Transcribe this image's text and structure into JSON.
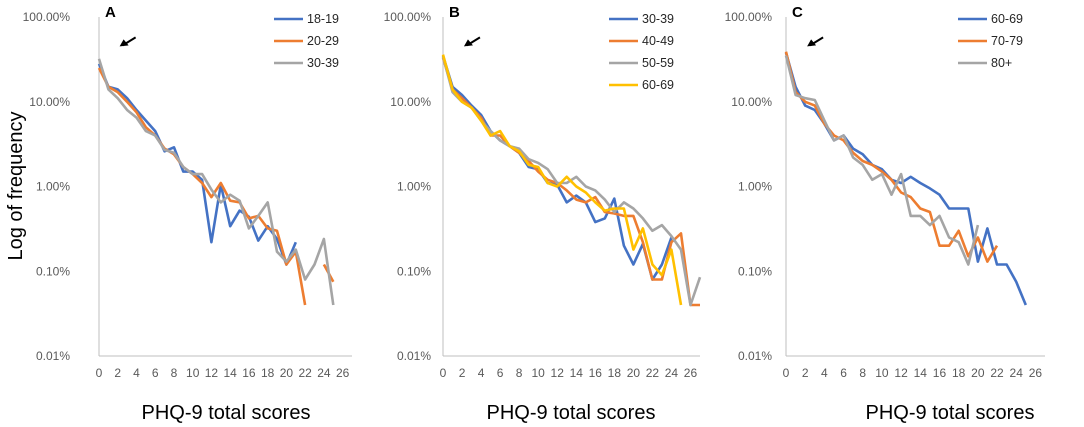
{
  "figure": {
    "ylabel": "Log of frequency"
  },
  "chart_data": [
    {
      "type": "line",
      "panel": "A",
      "xlabel": "PHQ-9 total scores",
      "ylabel": "Log of frequency",
      "yscale": "log",
      "ylim": [
        0.0001,
        1
      ],
      "yticks": [
        "0.01%",
        "0.10%",
        "1.00%",
        "10.00%",
        "100.00%"
      ],
      "xlim": [
        0,
        27
      ],
      "xticks": [
        "0",
        "2",
        "4",
        "6",
        "8",
        "10",
        "12",
        "14",
        "16",
        "18",
        "20",
        "22",
        "24",
        "26"
      ],
      "arrow_at": [
        2.2,
        0.45
      ],
      "series": [
        {
          "name": "18-19",
          "color": "#4472C4",
          "x": [
            0,
            1,
            2,
            3,
            4,
            5,
            6,
            7,
            8,
            9,
            10,
            11,
            12,
            13,
            14,
            15,
            16,
            17,
            18,
            19,
            20,
            21,
            22
          ],
          "y": [
            0.28,
            0.15,
            0.14,
            0.11,
            0.08,
            0.06,
            0.045,
            0.026,
            0.029,
            0.015,
            0.015,
            0.012,
            0.0022,
            0.0105,
            0.0034,
            0.0052,
            0.0044,
            0.0023,
            0.0034,
            0.0024,
            0.0012,
            0.0022,
            null
          ]
        },
        {
          "name": "20-29",
          "color": "#ED7D31",
          "x": [
            0,
            1,
            2,
            3,
            4,
            5,
            6,
            7,
            8,
            9,
            10,
            11,
            12,
            13,
            14,
            15,
            16,
            17,
            18,
            19,
            20,
            21,
            22,
            23,
            24,
            25
          ],
          "y": [
            0.25,
            0.15,
            0.13,
            0.1,
            0.075,
            0.05,
            0.04,
            0.028,
            0.024,
            0.017,
            0.014,
            0.011,
            0.0075,
            0.011,
            0.0068,
            0.0065,
            0.0042,
            0.0045,
            0.0032,
            0.003,
            0.0012,
            0.0017,
            0.0004,
            null,
            0.0012,
            0.00075
          ]
        },
        {
          "name": "30-39",
          "color": "#A5A5A5",
          "x": [
            0,
            1,
            2,
            3,
            4,
            5,
            6,
            7,
            8,
            9,
            10,
            11,
            12,
            13,
            14,
            15,
            16,
            17,
            18,
            19,
            20,
            21,
            22,
            23,
            24,
            25
          ],
          "y": [
            0.32,
            0.14,
            0.11,
            0.08,
            0.065,
            0.045,
            0.04,
            0.027,
            0.025,
            0.017,
            0.014,
            0.014,
            0.0092,
            0.0065,
            0.008,
            0.0068,
            0.0032,
            0.0045,
            0.0065,
            0.0017,
            0.0013,
            0.0018,
            0.0008,
            0.0012,
            0.0024,
            0.0004
          ]
        }
      ]
    },
    {
      "type": "line",
      "panel": "B",
      "xlabel": "PHQ-9 total scores",
      "ylabel": "",
      "yscale": "log",
      "ylim": [
        0.0001,
        1
      ],
      "yticks": [
        "0.01%",
        "0.10%",
        "1.00%",
        "10.00%",
        "100.00%"
      ],
      "xlim": [
        0,
        27
      ],
      "xticks": [
        "0",
        "2",
        "4",
        "6",
        "8",
        "10",
        "12",
        "14",
        "16",
        "18",
        "20",
        "22",
        "24",
        "26"
      ],
      "arrow_at": [
        2.2,
        0.45
      ],
      "series": [
        {
          "name": "30-39",
          "color": "#4472C4",
          "x": [
            0,
            1,
            2,
            3,
            4,
            5,
            6,
            7,
            8,
            9,
            10,
            11,
            12,
            13,
            14,
            15,
            16,
            17,
            18,
            19,
            20,
            21,
            22,
            23,
            24
          ],
          "y": [
            0.35,
            0.15,
            0.12,
            0.09,
            0.07,
            0.045,
            0.035,
            0.03,
            0.025,
            0.017,
            0.016,
            0.011,
            0.0105,
            0.0065,
            0.0078,
            0.0065,
            0.0038,
            0.0042,
            0.0072,
            0.002,
            0.0012,
            0.0021,
            0.0008,
            0.0012,
            0.0025
          ]
        },
        {
          "name": "40-49",
          "color": "#ED7D31",
          "x": [
            0,
            1,
            2,
            3,
            4,
            5,
            6,
            7,
            8,
            9,
            10,
            11,
            12,
            13,
            14,
            15,
            16,
            17,
            18,
            19,
            20,
            21,
            22,
            23,
            24,
            25,
            26,
            27
          ],
          "y": [
            0.33,
            0.14,
            0.11,
            0.085,
            0.065,
            0.04,
            0.04,
            0.03,
            0.025,
            0.02,
            0.015,
            0.012,
            0.011,
            0.009,
            0.007,
            0.0065,
            0.0075,
            0.005,
            0.0048,
            0.0045,
            0.0045,
            0.0022,
            0.0008,
            0.0008,
            0.0022,
            0.0028,
            0.0004,
            0.0004
          ]
        },
        {
          "name": "50-59",
          "color": "#A5A5A5",
          "x": [
            0,
            1,
            2,
            3,
            4,
            5,
            6,
            7,
            8,
            9,
            10,
            11,
            12,
            13,
            14,
            15,
            16,
            17,
            18,
            19,
            20,
            21,
            22,
            23,
            24,
            25,
            26,
            27
          ],
          "y": [
            0.34,
            0.13,
            0.1,
            0.085,
            0.06,
            0.045,
            0.035,
            0.03,
            0.028,
            0.021,
            0.019,
            0.016,
            0.011,
            0.011,
            0.013,
            0.01,
            0.009,
            0.007,
            0.005,
            0.0065,
            0.0055,
            0.0042,
            0.003,
            0.0035,
            0.0026,
            0.0018,
            0.0004,
            0.00085
          ]
        },
        {
          "name": "60-69",
          "color": "#FFC000",
          "x": [
            0,
            1,
            2,
            3,
            4,
            5,
            6,
            7,
            8,
            9,
            10,
            11,
            12,
            13,
            14,
            15,
            16,
            17,
            18,
            19,
            20,
            21,
            22,
            23,
            24,
            25
          ],
          "y": [
            0.36,
            0.14,
            0.1,
            0.085,
            0.06,
            0.04,
            0.045,
            0.03,
            0.026,
            0.018,
            0.017,
            0.011,
            0.01,
            0.013,
            0.01,
            0.0085,
            0.0065,
            0.0052,
            0.0055,
            0.0055,
            0.0018,
            0.0032,
            0.0012,
            0.0009,
            0.0018,
            0.0004
          ]
        }
      ]
    },
    {
      "type": "line",
      "panel": "C",
      "xlabel": "PHQ-9 total scores",
      "ylabel": "",
      "yscale": "log",
      "ylim": [
        0.0001,
        1
      ],
      "yticks": [
        "0.01%",
        "0.10%",
        "1.00%",
        "10.00%",
        "100.00%"
      ],
      "xlim": [
        0,
        27
      ],
      "xticks": [
        "0",
        "2",
        "4",
        "6",
        "8",
        "10",
        "12",
        "14",
        "16",
        "18",
        "20",
        "22",
        "24",
        "26"
      ],
      "arrow_at": [
        2.2,
        0.45
      ],
      "series": [
        {
          "name": "60-69",
          "color": "#4472C4",
          "x": [
            0,
            1,
            2,
            3,
            4,
            5,
            6,
            7,
            8,
            9,
            10,
            11,
            12,
            13,
            14,
            15,
            16,
            17,
            18,
            19,
            20,
            21,
            22,
            23,
            24,
            25
          ],
          "y": [
            0.38,
            0.15,
            0.09,
            0.08,
            0.055,
            0.035,
            0.04,
            0.028,
            0.024,
            0.018,
            0.016,
            0.012,
            0.011,
            0.013,
            0.011,
            0.0095,
            0.008,
            0.0055,
            0.0055,
            0.0055,
            0.0013,
            0.0032,
            0.0012,
            0.0012,
            0.00075,
            0.0004
          ]
        },
        {
          "name": "70-79",
          "color": "#ED7D31",
          "x": [
            0,
            1,
            2,
            3,
            4,
            5,
            6,
            7,
            8,
            9,
            10,
            11,
            12,
            13,
            14,
            15,
            16,
            17,
            18,
            19,
            20,
            21,
            22
          ],
          "y": [
            0.39,
            0.13,
            0.1,
            0.09,
            0.055,
            0.04,
            0.035,
            0.025,
            0.02,
            0.018,
            0.015,
            0.012,
            0.0085,
            0.0075,
            0.0055,
            0.005,
            0.002,
            0.002,
            0.003,
            0.0015,
            0.0025,
            0.0013,
            0.002
          ]
        },
        {
          "name": "80+",
          "color": "#A5A5A5",
          "x": [
            0,
            1,
            2,
            3,
            4,
            5,
            6,
            7,
            8,
            9,
            10,
            11,
            12,
            13,
            14,
            15,
            16,
            17,
            18,
            19,
            20
          ],
          "y": [
            0.35,
            0.12,
            0.11,
            0.105,
            0.06,
            0.035,
            0.04,
            0.022,
            0.018,
            0.012,
            0.014,
            0.008,
            0.014,
            0.0045,
            0.0045,
            0.0035,
            0.0045,
            0.0025,
            0.0022,
            0.0012,
            0.0035
          ]
        }
      ]
    }
  ]
}
